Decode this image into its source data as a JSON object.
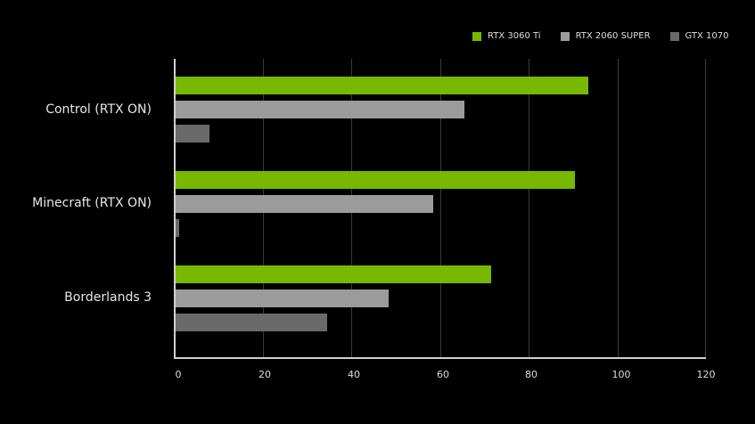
{
  "chart_data": {
    "type": "bar",
    "orientation": "horizontal",
    "title": "",
    "xlabel": "",
    "ylabel": "",
    "xlim": [
      0,
      120
    ],
    "x_ticks": [
      "0",
      "20",
      "40",
      "60",
      "80",
      "100",
      "120"
    ],
    "grid": true,
    "legend_position": "top-right",
    "categories": [
      "Control (RTX ON)",
      "Minecraft (RTX ON)",
      "Borderlands 3"
    ],
    "series": [
      {
        "name": "RTX 3060 Ti",
        "color": "#76b900",
        "values": [
          93.5,
          90.5,
          71.5
        ]
      },
      {
        "name": "RTX 2060 SUPER",
        "color": "#9b9b9b",
        "values": [
          65.5,
          58.5,
          48.5
        ]
      },
      {
        "name": "GTX 1070",
        "color": "#6a6a6a",
        "values": [
          8,
          1.2,
          34.5
        ]
      }
    ]
  }
}
